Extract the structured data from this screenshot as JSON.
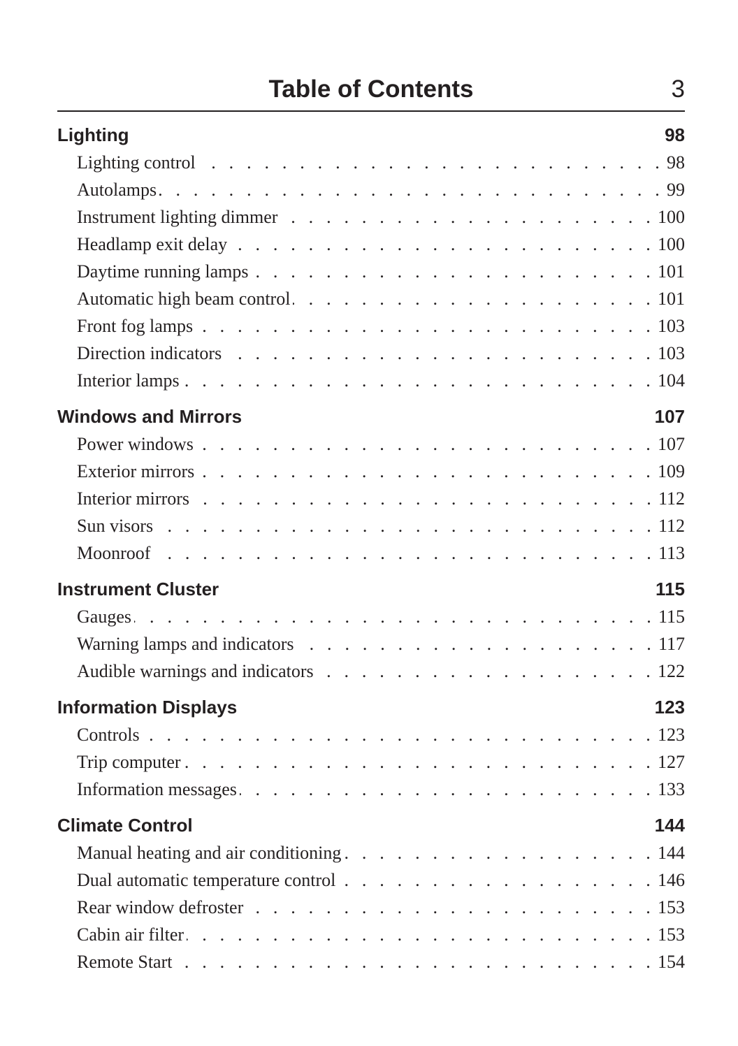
{
  "header": {
    "title": "Table of Contents",
    "page_number": "3"
  },
  "sections": [
    {
      "title": "Lighting",
      "page": "98",
      "entries": [
        {
          "label": "Lighting control",
          "page": "98"
        },
        {
          "label": "Autolamps",
          "page": "99"
        },
        {
          "label": "Instrument lighting dimmer",
          "page": "100"
        },
        {
          "label": "Headlamp exit delay",
          "page": "100"
        },
        {
          "label": "Daytime running lamps",
          "page": "101"
        },
        {
          "label": "Automatic high beam control",
          "page": "101"
        },
        {
          "label": "Front fog lamps",
          "page": "103"
        },
        {
          "label": "Direction indicators",
          "page": "103"
        },
        {
          "label": "Interior lamps",
          "page": "104"
        }
      ]
    },
    {
      "title": "Windows and Mirrors",
      "page": "107",
      "entries": [
        {
          "label": "Power windows",
          "page": "107"
        },
        {
          "label": "Exterior mirrors",
          "page": "109"
        },
        {
          "label": "Interior mirrors",
          "page": "112"
        },
        {
          "label": "Sun visors",
          "page": "112"
        },
        {
          "label": "Moonroof",
          "page": "113"
        }
      ]
    },
    {
      "title": "Instrument Cluster",
      "page": "115",
      "entries": [
        {
          "label": "Gauges",
          "page": "115"
        },
        {
          "label": "Warning lamps and indicators",
          "page": "117"
        },
        {
          "label": "Audible warnings and indicators",
          "page": "122"
        }
      ]
    },
    {
      "title": "Information Displays",
      "page": "123",
      "entries": [
        {
          "label": "Controls",
          "page": "123"
        },
        {
          "label": "Trip computer",
          "page": "127"
        },
        {
          "label": "Information messages",
          "page": "133"
        }
      ]
    },
    {
      "title": "Climate Control",
      "page": "144",
      "entries": [
        {
          "label": "Manual heating and air conditioning",
          "page": "144"
        },
        {
          "label": "Dual automatic temperature control",
          "page": "146"
        },
        {
          "label": "Rear window defroster",
          "page": "153"
        },
        {
          "label": "Cabin air filter",
          "page": "153"
        },
        {
          "label": "Remote Start",
          "page": "154"
        }
      ]
    }
  ]
}
